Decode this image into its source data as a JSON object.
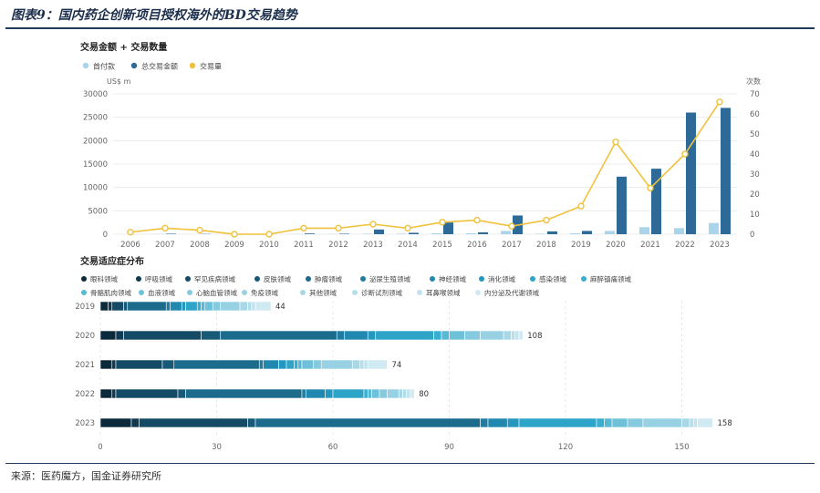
{
  "figure_title": "图表9：国内药企创新项目授权海外的BD交易趋势",
  "source": "来源：医药魔方，国金证券研究所",
  "colors": {
    "upfront": "#a9d4ea",
    "total": "#2d6a98",
    "count": "#f0c23c",
    "grid": "#ececec",
    "axis_text": "#666666"
  },
  "chart_data": [
    {
      "type": "bar",
      "title": "交易金额 + 交易数量",
      "left_unit": "US$ m",
      "right_unit": "次数",
      "categories": [
        "2006",
        "2007",
        "2008",
        "2009",
        "2010",
        "2011",
        "2012",
        "2013",
        "2014",
        "2015",
        "2016",
        "2017",
        "2018",
        "2019",
        "2020",
        "2021",
        "2022",
        "2023"
      ],
      "series": [
        {
          "name": "首付款",
          "type": "bar",
          "axis": "left",
          "values": [
            0,
            50,
            0,
            0,
            0,
            50,
            50,
            100,
            100,
            200,
            200,
            700,
            100,
            200,
            700,
            1500,
            1300,
            2400
          ]
        },
        {
          "name": "总交易金额",
          "type": "bar",
          "axis": "left",
          "values": [
            0,
            100,
            50,
            0,
            0,
            150,
            100,
            1000,
            300,
            2500,
            400,
            4000,
            600,
            700,
            12300,
            14000,
            26000,
            27000
          ]
        },
        {
          "name": "交易量",
          "type": "line",
          "axis": "right",
          "values": [
            1,
            3,
            2,
            0,
            0,
            3,
            3,
            5,
            3,
            6,
            7,
            4,
            7,
            14,
            46,
            23,
            40,
            66
          ]
        }
      ],
      "y_left_ticks": [
        0,
        5000,
        10000,
        15000,
        20000,
        25000,
        30000
      ],
      "y_left_lim": [
        0,
        30000
      ],
      "y_right_ticks": [
        0,
        10,
        20,
        30,
        40,
        50,
        60,
        70
      ],
      "y_right_lim": [
        0,
        70
      ],
      "grid": true,
      "legend_position": "top-left"
    },
    {
      "type": "bar",
      "orientation": "horizontal",
      "stacked": true,
      "title": "交易适应症分布",
      "categories": [
        "2019",
        "2020",
        "2021",
        "2022",
        "2023"
      ],
      "totals": [
        44,
        108,
        74,
        80,
        158
      ],
      "x_ticks": [
        0,
        30,
        60,
        90,
        120,
        150
      ],
      "xlim": [
        0,
        160
      ],
      "series": [
        {
          "name": "眼科领域",
          "color": "#0b2a3c",
          "values": [
            2,
            4,
            3,
            3,
            8
          ]
        },
        {
          "name": "呼吸领域",
          "color": "#0f3a52",
          "values": [
            1,
            2,
            1,
            1,
            2
          ]
        },
        {
          "name": "罕见疾病领域",
          "color": "#134a66",
          "values": [
            3,
            20,
            12,
            16,
            28
          ]
        },
        {
          "name": "皮肤领域",
          "color": "#175a78",
          "values": [
            1,
            5,
            3,
            2,
            2
          ]
        },
        {
          "name": "肿瘤领域",
          "color": "#1b6b8c",
          "values": [
            10,
            30,
            22,
            30,
            58
          ]
        },
        {
          "name": "泌尿生殖领域",
          "color": "#1e7ca0",
          "values": [
            1,
            2,
            1,
            1,
            2
          ]
        },
        {
          "name": "神经领域",
          "color": "#2189b0",
          "values": [
            3,
            6,
            4,
            5,
            5
          ]
        },
        {
          "name": "消化领域",
          "color": "#2596be",
          "values": [
            1,
            2,
            2,
            2,
            3
          ]
        },
        {
          "name": "感染领域",
          "color": "#2ea4c9",
          "values": [
            3,
            15,
            2,
            8,
            20
          ]
        },
        {
          "name": "麻醉镇痛领域",
          "color": "#3aaed0",
          "values": [
            1,
            2,
            1,
            1,
            2
          ]
        },
        {
          "name": "骨骼肌肉领域",
          "color": "#58b8d6",
          "values": [
            1,
            2,
            1,
            1,
            2
          ]
        },
        {
          "name": "血液领域",
          "color": "#6fc1da",
          "values": [
            2,
            4,
            3,
            2,
            4
          ]
        },
        {
          "name": "心脑血管领域",
          "color": "#85cadf",
          "values": [
            2,
            4,
            2,
            2,
            4
          ]
        },
        {
          "name": "免疫领域",
          "color": "#97d1e3",
          "values": [
            5,
            6,
            8,
            3,
            10
          ]
        },
        {
          "name": "其他领域",
          "color": "#a8d8e8",
          "values": [
            2,
            2,
            2,
            1,
            2
          ]
        },
        {
          "name": "诊断试剂领域",
          "color": "#b5deeb",
          "values": [
            1,
            1,
            1,
            1,
            1
          ]
        },
        {
          "name": "耳鼻喉领域",
          "color": "#c2e4ef",
          "values": [
            1,
            1,
            1,
            1,
            1
          ]
        },
        {
          "name": "内分泌及代谢领域",
          "color": "#cfeaf3",
          "values": [
            4,
            1,
            5,
            1,
            4
          ]
        }
      ],
      "grid": true,
      "legend_position": "top-left"
    }
  ]
}
